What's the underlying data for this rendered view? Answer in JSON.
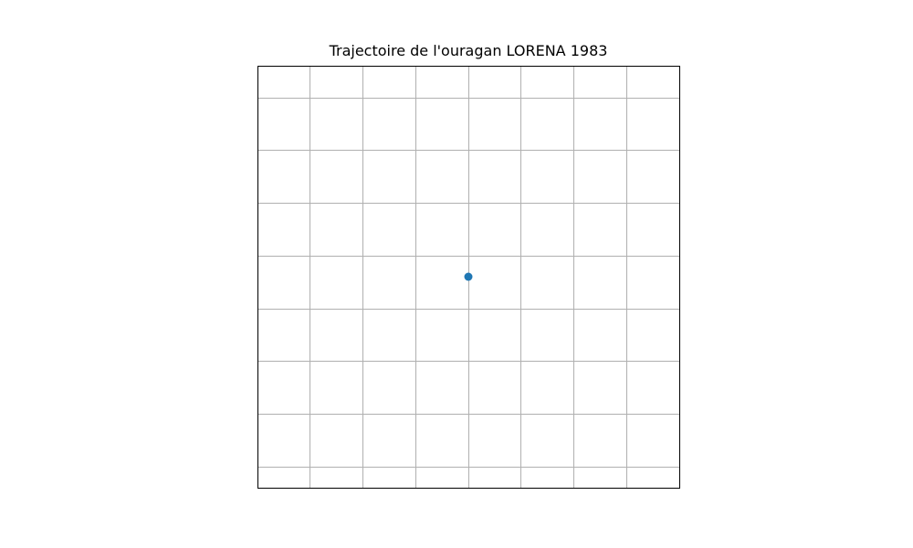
{
  "chart_data": {
    "type": "scatter",
    "title": "Trajectoire de l'ouragan LORENA 1983",
    "xlabel": "",
    "ylabel": "",
    "grid": true,
    "axis_ticks_visible": false,
    "series": [
      {
        "color": "#1f77b4",
        "points": [
          {
            "x": 0.0,
            "y": 0.0
          }
        ]
      }
    ]
  },
  "colors": {
    "point": "#1f77b4",
    "grid": "#b0b0b0",
    "frame": "#000000"
  }
}
